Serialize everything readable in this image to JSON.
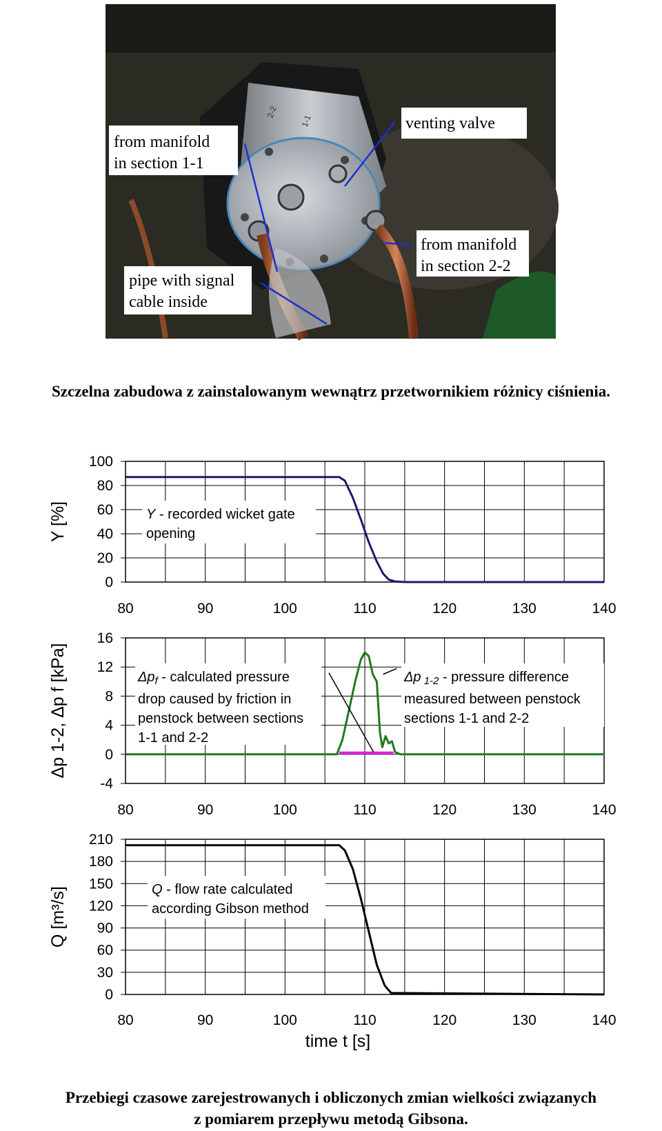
{
  "photo": {
    "labels": {
      "manifold_1_l1": "from manifold",
      "manifold_1_l2": "in section 1-1",
      "venting": "venting valve",
      "manifold_2_l1": "from manifold",
      "manifold_2_l2": "in section 2-2",
      "pipe_l1": "pipe with signal",
      "pipe_l2": "cable inside"
    },
    "marks": [
      "2-2",
      "1-1"
    ]
  },
  "caption1": "Szczelna zabudowa z zainstalowanym wewnątrz przetwornikiem różnicy ciśnienia.",
  "caption2_l1": "Przebiegi czasowe zarejestrowanych i obliczonych zmian wielkości związanych",
  "caption2_l2": "z pomiarem przepływu metodą Gibsona.",
  "colors": {
    "Y": "#1a1a6e",
    "dp12": "#1f7a1f",
    "dpf": "#e020e0",
    "Q": "#000000",
    "grid": "#000000"
  },
  "chart_data": [
    {
      "type": "line",
      "ylabel": "Y [%]",
      "xlim": [
        80,
        140
      ],
      "ylim": [
        0,
        100
      ],
      "x_ticks": [
        "80",
        "90",
        "100",
        "110",
        "120",
        "130",
        "140"
      ],
      "y_ticks": [
        "0",
        "20",
        "40",
        "60",
        "80",
        "100"
      ],
      "grid": true,
      "annotation": {
        "var": "Y",
        "l1": "- recorded wicket gate",
        "l2": "opening"
      },
      "series": [
        {
          "x": [
            80,
            106.8,
            107.5,
            108.5,
            109.5,
            110.5,
            111.5,
            112.3,
            113,
            113.8,
            115,
            140
          ],
          "y": [
            87,
            87,
            84,
            70,
            52,
            33,
            17,
            7,
            2,
            0.5,
            0,
            0
          ]
        }
      ]
    },
    {
      "type": "line",
      "ylabel": "Δp 1-2, Δp f [kPa]",
      "xlim": [
        80,
        140
      ],
      "ylim": [
        -4,
        16
      ],
      "x_ticks": [
        "80",
        "90",
        "100",
        "110",
        "120",
        "130",
        "140"
      ],
      "y_ticks": [
        "-4",
        "0",
        "4",
        "8",
        "12",
        "16"
      ],
      "grid": true,
      "annotations": {
        "dpf": {
          "sym": "Δp",
          "sub": "f",
          "l1": " - calculated pressure",
          "l2": "drop caused by friction in",
          "l3": "penstock between sections",
          "l4": "1-1 and 2-2"
        },
        "dp12": {
          "sym": "Δp",
          "sub": "1-2",
          "l1": " - pressure difference",
          "l2": "measured  between penstock",
          "l3": "sections 1-1 and 2-2"
        }
      },
      "series": [
        {
          "x": [
            80,
            106.5,
            107.2,
            108,
            108.8,
            109.5,
            110,
            110.5,
            111,
            111.5,
            111.9,
            112.2,
            112.6,
            113,
            113.4,
            113.8,
            114.5,
            140
          ],
          "y": [
            0,
            0,
            2,
            6,
            10,
            13,
            14,
            13.5,
            11,
            10,
            3,
            1,
            2.5,
            1.5,
            1.8,
            0.3,
            0,
            0
          ]
        },
        {
          "x": [
            106.8,
            113.6
          ],
          "y": [
            0.2,
            0.2
          ]
        }
      ]
    },
    {
      "type": "line",
      "ylabel": "Q [m³/s]",
      "xlabel": "time  t [s]",
      "xlim": [
        80,
        140
      ],
      "ylim": [
        0,
        210
      ],
      "x_ticks": [
        "80",
        "90",
        "100",
        "110",
        "120",
        "130",
        "140"
      ],
      "y_ticks": [
        "0",
        "30",
        "60",
        "90",
        "120",
        "150",
        "180",
        "210"
      ],
      "grid": true,
      "annotation": {
        "var": "Q",
        "l1": " - flow rate calculated",
        "l2": "according Gibson method"
      },
      "series": [
        {
          "x": [
            80,
            106.8,
            107.5,
            108.5,
            109.5,
            110.5,
            111.5,
            112.5,
            113.3,
            140
          ],
          "y": [
            202,
            202,
            195,
            170,
            130,
            85,
            40,
            12,
            2,
            0
          ]
        }
      ]
    }
  ]
}
